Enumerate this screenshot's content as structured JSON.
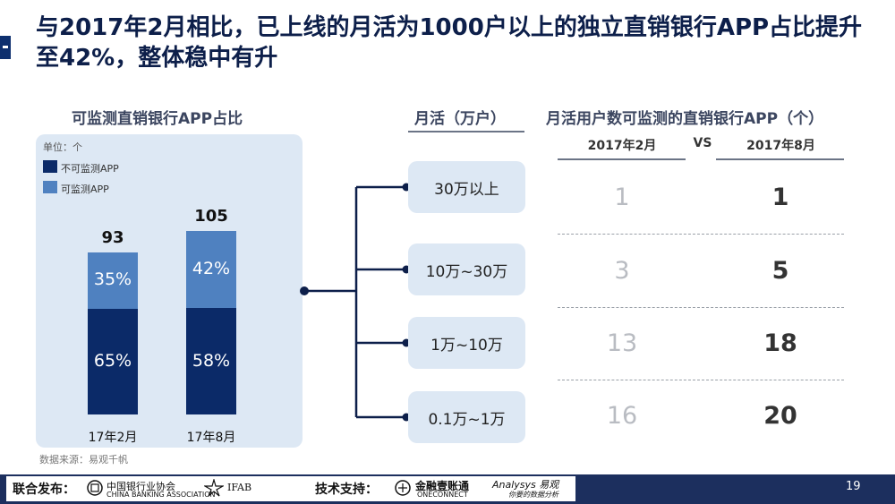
{
  "slide": {
    "title": "与2017年2月相比，已上线的月活为1000户以上的独立直销银行APP占比提升至42%，整体稳中有升",
    "page_number": "19",
    "source": "数据来源：易观千帆"
  },
  "left_chart": {
    "heading": "可监测直销银行APP占比",
    "unit": "单位：个",
    "colors": {
      "not_monitorable": "#0b2a68",
      "monitorable": "#4f81c0"
    }
  },
  "chart_data": [
    {
      "type": "bar",
      "stacked": true,
      "title": "可监测直销银行APP占比",
      "unit": "单位：个",
      "categories": [
        "17年2月",
        "17年8月"
      ],
      "totals": [
        93,
        105
      ],
      "series": [
        {
          "name": "不可监测APP",
          "values": [
            "65%",
            "58%"
          ],
          "share": [
            65,
            58
          ]
        },
        {
          "name": "可监测APP",
          "values": [
            "35%",
            "42%"
          ],
          "share": [
            35,
            42
          ]
        }
      ],
      "legend": "top-left"
    },
    {
      "type": "table",
      "title": "月活用户数可监测的直销银行APP（个）",
      "row_header": "月活（万户）",
      "columns": [
        "2017年2月",
        "VS",
        "2017年8月"
      ],
      "rows": [
        {
          "label": "30万以上",
          "feb": "1",
          "aug": "1"
        },
        {
          "label": "10万~30万",
          "feb": "3",
          "aug": "5"
        },
        {
          "label": "1万~10万",
          "feb": "13",
          "aug": "18"
        },
        {
          "label": "0.1万~1万",
          "feb": "16",
          "aug": "20"
        }
      ]
    }
  ],
  "footer": {
    "joint_label": "联合发布：",
    "cba_name": "中国银行业协会",
    "cba_en": "CHINA BANKING ASSOCIATION",
    "ifab_name": "IFAB",
    "tech_label": "技术支持：",
    "oneconnect_name": "金融壹账通",
    "oneconnect_en": "ONECONNECT",
    "analysys_name": "Analysys 易观",
    "analysys_slogan": "你要的数据分析"
  }
}
